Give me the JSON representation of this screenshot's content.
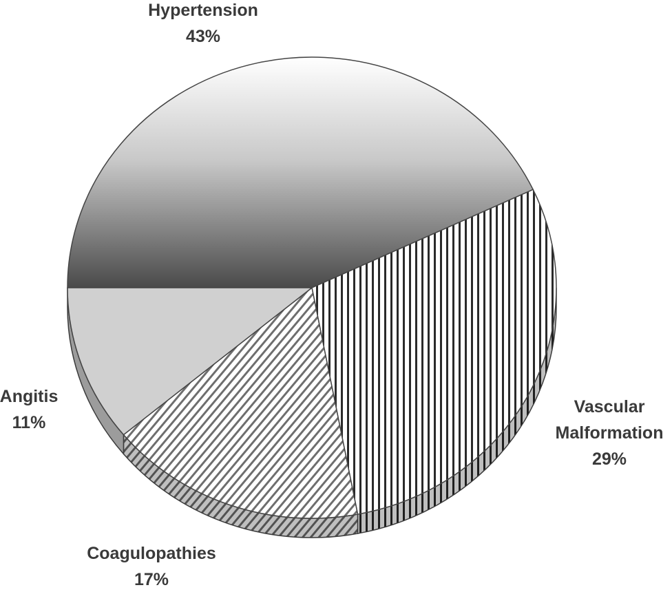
{
  "chart_data": {
    "type": "pie",
    "categories": [
      "Hypertension",
      "Vascular Malformation",
      "Coagulopathies",
      "Angitis"
    ],
    "values": [
      43,
      29,
      17,
      11
    ],
    "value_labels": [
      "43%",
      "29%",
      "17%",
      "11%"
    ],
    "colors": [
      "#5a5a5a",
      "#2a2a2a",
      "#6e6e6e",
      "#d0d0d0"
    ],
    "start_angle": 180,
    "direction": "clockwise"
  }
}
